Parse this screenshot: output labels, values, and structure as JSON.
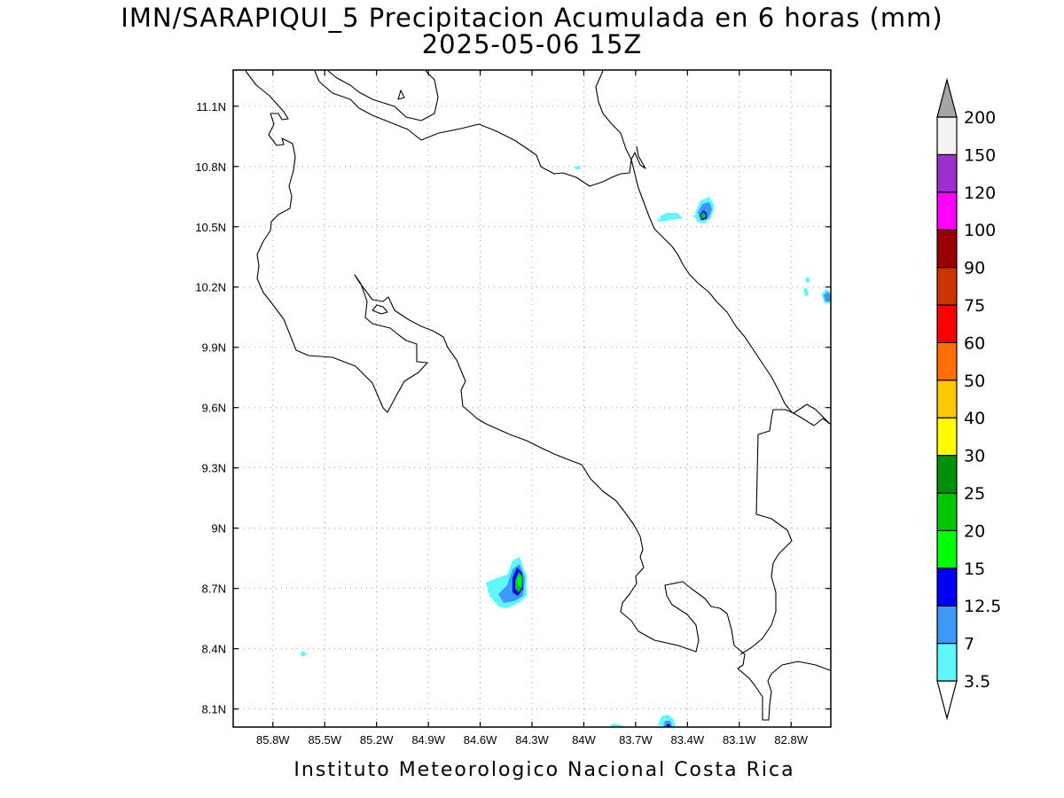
{
  "title_line1": "IMN/SARAPIQUI_5 Precipitacion Acumulada en 6 horas (mm)",
  "title_line2": "2025-05-06 15Z",
  "footer": "Instituto Meteorologico Nacional Costa Rica",
  "map": {
    "lon_range": [
      -86.03,
      -82.57
    ],
    "lat_range": [
      8.01,
      11.28
    ],
    "x_ticks": [
      "85.8W",
      "85.5W",
      "85.2W",
      "84.9W",
      "84.6W",
      "84.3W",
      "84W",
      "83.7W",
      "83.4W",
      "83.1W",
      "82.8W"
    ],
    "y_ticks": [
      "11.1N",
      "10.8N",
      "10.5N",
      "10.2N",
      "9.9N",
      "9.6N",
      "9.3N",
      "9N",
      "8.7N",
      "8.4N",
      "8.1N"
    ],
    "grid": "dotted"
  },
  "colorbar": {
    "labels": [
      "3.5",
      "7",
      "12.5",
      "15",
      "20",
      "25",
      "30",
      "40",
      "50",
      "60",
      "75",
      "90",
      "100",
      "120",
      "150",
      "200"
    ],
    "colors": [
      "#5ff8fa",
      "#3c99fa",
      "#0000fa",
      "#00ff00",
      "#00c800",
      "#00900a",
      "#fffb00",
      "#ffc800",
      "#ff6e00",
      "#ff0000",
      "#cc3300",
      "#990000",
      "#ff00ff",
      "#9b30cf",
      "#f2f2f2"
    ],
    "over_color": "#a5a5a5",
    "under_color": "#ffffff"
  }
}
